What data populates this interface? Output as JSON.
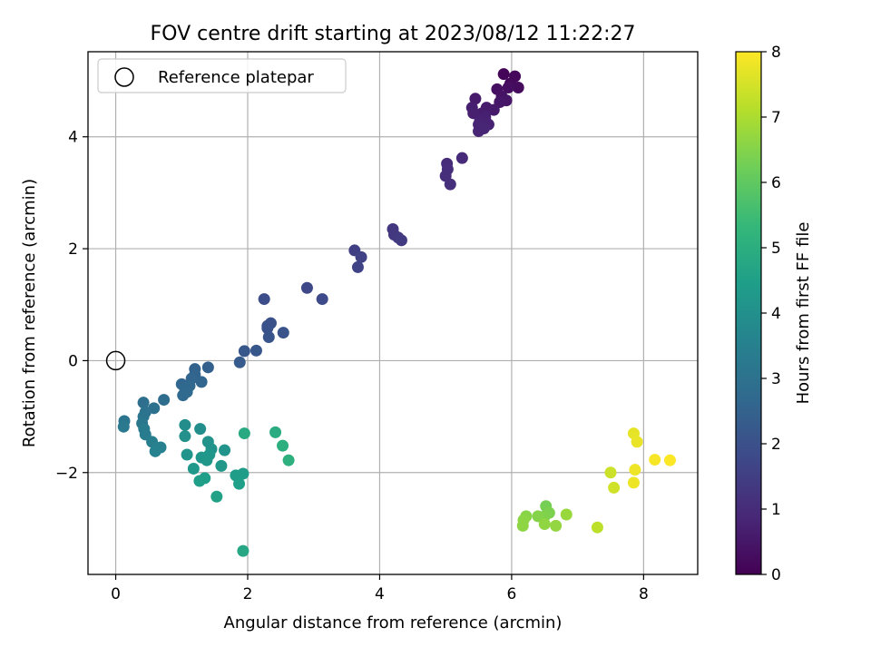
{
  "chart_data": {
    "type": "scatter",
    "title": "FOV centre drift starting at 2023/08/12 11:22:27",
    "xlabel": "Angular distance from reference (arcmin)",
    "ylabel": "Rotation from reference (arcmin)",
    "xlim": [
      -0.42,
      8.82
    ],
    "ylim": [
      -3.82,
      5.52
    ],
    "xticks": [
      0,
      2,
      4,
      6,
      8
    ],
    "yticks": [
      -2,
      0,
      2,
      4
    ],
    "xtick_labels": [
      "0",
      "2",
      "4",
      "6",
      "8"
    ],
    "ytick_labels": [
      "−2",
      "0",
      "2",
      "4"
    ],
    "grid": true,
    "legend": {
      "label": "Reference platepar",
      "position": "top-left",
      "marker": "open-circle"
    },
    "reference_point": {
      "x": 0,
      "y": 0
    },
    "colorbar": {
      "label": "Hours from first FF file",
      "min": 0,
      "max": 8,
      "ticks": [
        0,
        1,
        2,
        3,
        4,
        5,
        6,
        7,
        8
      ],
      "tick_labels": [
        "0",
        "1",
        "2",
        "3",
        "4",
        "5",
        "6",
        "7",
        "8"
      ],
      "colormap": "viridis",
      "colormap_stops": [
        "#440154",
        "#482878",
        "#3e4989",
        "#31688e",
        "#26828e",
        "#1f9e89",
        "#35b779",
        "#6ece58",
        "#b5de2b",
        "#fde725"
      ]
    },
    "points": [
      {
        "x": 5.88,
        "y": 5.12,
        "t": 0.1
      },
      {
        "x": 6.05,
        "y": 5.08,
        "t": 0.15
      },
      {
        "x": 5.98,
        "y": 4.95,
        "t": 0.2
      },
      {
        "x": 6.1,
        "y": 4.88,
        "t": 0.25
      },
      {
        "x": 5.95,
        "y": 4.88,
        "t": 0.3
      },
      {
        "x": 5.78,
        "y": 4.85,
        "t": 0.35
      },
      {
        "x": 5.85,
        "y": 4.72,
        "t": 0.4
      },
      {
        "x": 5.92,
        "y": 4.65,
        "t": 0.45
      },
      {
        "x": 5.82,
        "y": 4.62,
        "t": 0.5
      },
      {
        "x": 5.73,
        "y": 4.48,
        "t": 0.55
      },
      {
        "x": 5.45,
        "y": 4.68,
        "t": 0.6
      },
      {
        "x": 5.62,
        "y": 4.52,
        "t": 0.62
      },
      {
        "x": 5.55,
        "y": 4.42,
        "t": 0.65
      },
      {
        "x": 5.4,
        "y": 4.52,
        "t": 0.68
      },
      {
        "x": 5.42,
        "y": 4.42,
        "t": 0.7
      },
      {
        "x": 5.6,
        "y": 4.35,
        "t": 0.72
      },
      {
        "x": 5.52,
        "y": 4.28,
        "t": 0.75
      },
      {
        "x": 5.65,
        "y": 4.22,
        "t": 0.78
      },
      {
        "x": 5.5,
        "y": 4.22,
        "t": 0.8
      },
      {
        "x": 5.5,
        "y": 4.1,
        "t": 0.82
      },
      {
        "x": 5.58,
        "y": 4.15,
        "t": 0.85
      },
      {
        "x": 5.25,
        "y": 3.62,
        "t": 0.95
      },
      {
        "x": 5.02,
        "y": 3.52,
        "t": 1.0
      },
      {
        "x": 5.03,
        "y": 3.42,
        "t": 1.02
      },
      {
        "x": 5.0,
        "y": 3.3,
        "t": 1.05
      },
      {
        "x": 5.07,
        "y": 3.15,
        "t": 1.1
      },
      {
        "x": 4.2,
        "y": 2.35,
        "t": 1.3
      },
      {
        "x": 4.22,
        "y": 2.25,
        "t": 1.33
      },
      {
        "x": 4.28,
        "y": 2.2,
        "t": 1.36
      },
      {
        "x": 4.33,
        "y": 2.15,
        "t": 1.4
      },
      {
        "x": 3.62,
        "y": 1.97,
        "t": 1.5
      },
      {
        "x": 3.72,
        "y": 1.85,
        "t": 1.55
      },
      {
        "x": 3.67,
        "y": 1.67,
        "t": 1.6
      },
      {
        "x": 2.9,
        "y": 1.3,
        "t": 1.75
      },
      {
        "x": 3.13,
        "y": 1.1,
        "t": 1.8
      },
      {
        "x": 2.25,
        "y": 1.1,
        "t": 1.9
      },
      {
        "x": 2.35,
        "y": 0.67,
        "t": 2.0
      },
      {
        "x": 2.3,
        "y": 0.62,
        "t": 2.02
      },
      {
        "x": 2.3,
        "y": 0.58,
        "t": 2.05
      },
      {
        "x": 2.54,
        "y": 0.5,
        "t": 2.08
      },
      {
        "x": 2.32,
        "y": 0.42,
        "t": 2.1
      },
      {
        "x": 1.95,
        "y": 0.17,
        "t": 2.2
      },
      {
        "x": 2.13,
        "y": 0.18,
        "t": 2.22
      },
      {
        "x": 1.88,
        "y": -0.03,
        "t": 2.3
      },
      {
        "x": 1.4,
        "y": -0.12,
        "t": 2.45
      },
      {
        "x": 1.2,
        "y": -0.15,
        "t": 2.5
      },
      {
        "x": 1.2,
        "y": -0.25,
        "t": 2.55
      },
      {
        "x": 1.15,
        "y": -0.32,
        "t": 2.6
      },
      {
        "x": 1.3,
        "y": -0.38,
        "t": 2.62
      },
      {
        "x": 1.0,
        "y": -0.42,
        "t": 2.65
      },
      {
        "x": 1.12,
        "y": -0.45,
        "t": 2.68
      },
      {
        "x": 1.05,
        "y": -0.5,
        "t": 2.7
      },
      {
        "x": 1.08,
        "y": -0.56,
        "t": 2.72
      },
      {
        "x": 1.02,
        "y": -0.62,
        "t": 2.75
      },
      {
        "x": 0.73,
        "y": -0.7,
        "t": 2.85
      },
      {
        "x": 0.42,
        "y": -0.75,
        "t": 2.9
      },
      {
        "x": 0.58,
        "y": -0.85,
        "t": 2.95
      },
      {
        "x": 0.45,
        "y": -0.92,
        "t": 3.0
      },
      {
        "x": 0.42,
        "y": -1.0,
        "t": 3.05
      },
      {
        "x": 0.13,
        "y": -1.08,
        "t": 3.15
      },
      {
        "x": 0.4,
        "y": -1.12,
        "t": 3.2
      },
      {
        "x": 0.12,
        "y": -1.18,
        "t": 3.25
      },
      {
        "x": 0.43,
        "y": -1.22,
        "t": 3.3
      },
      {
        "x": 0.45,
        "y": -1.32,
        "t": 3.35
      },
      {
        "x": 0.55,
        "y": -1.45,
        "t": 3.45
      },
      {
        "x": 0.68,
        "y": -1.55,
        "t": 3.5
      },
      {
        "x": 0.6,
        "y": -1.62,
        "t": 3.55
      },
      {
        "x": 1.05,
        "y": -1.15,
        "t": 3.9
      },
      {
        "x": 1.28,
        "y": -1.22,
        "t": 3.95
      },
      {
        "x": 1.05,
        "y": -1.35,
        "t": 4.0
      },
      {
        "x": 1.4,
        "y": -1.45,
        "t": 4.05
      },
      {
        "x": 1.45,
        "y": -1.58,
        "t": 4.1
      },
      {
        "x": 1.65,
        "y": -1.6,
        "t": 4.12
      },
      {
        "x": 1.08,
        "y": -1.68,
        "t": 4.15
      },
      {
        "x": 1.42,
        "y": -1.68,
        "t": 4.18
      },
      {
        "x": 1.3,
        "y": -1.73,
        "t": 4.2
      },
      {
        "x": 1.38,
        "y": -1.78,
        "t": 4.22
      },
      {
        "x": 1.6,
        "y": -1.88,
        "t": 4.25
      },
      {
        "x": 1.18,
        "y": -1.93,
        "t": 4.3
      },
      {
        "x": 1.82,
        "y": -2.05,
        "t": 4.4
      },
      {
        "x": 1.93,
        "y": -2.02,
        "t": 4.42
      },
      {
        "x": 1.35,
        "y": -2.1,
        "t": 4.45
      },
      {
        "x": 1.27,
        "y": -2.15,
        "t": 4.48
      },
      {
        "x": 1.87,
        "y": -2.2,
        "t": 4.5
      },
      {
        "x": 1.53,
        "y": -2.43,
        "t": 4.55
      },
      {
        "x": 1.93,
        "y": -3.4,
        "t": 4.75
      },
      {
        "x": 1.95,
        "y": -1.3,
        "t": 4.85
      },
      {
        "x": 2.42,
        "y": -1.28,
        "t": 4.9
      },
      {
        "x": 2.53,
        "y": -1.52,
        "t": 5.0
      },
      {
        "x": 2.62,
        "y": -1.78,
        "t": 5.05
      },
      {
        "x": 6.52,
        "y": -2.6,
        "t": 6.3
      },
      {
        "x": 6.57,
        "y": -2.72,
        "t": 6.4
      },
      {
        "x": 6.5,
        "y": -2.78,
        "t": 6.45
      },
      {
        "x": 6.4,
        "y": -2.78,
        "t": 6.5
      },
      {
        "x": 6.22,
        "y": -2.78,
        "t": 6.55
      },
      {
        "x": 6.18,
        "y": -2.85,
        "t": 6.6
      },
      {
        "x": 6.17,
        "y": -2.95,
        "t": 6.62
      },
      {
        "x": 6.5,
        "y": -2.92,
        "t": 6.65
      },
      {
        "x": 6.67,
        "y": -2.95,
        "t": 6.68
      },
      {
        "x": 6.83,
        "y": -2.75,
        "t": 6.75
      },
      {
        "x": 7.3,
        "y": -2.98,
        "t": 7.2
      },
      {
        "x": 7.5,
        "y": -2.0,
        "t": 7.4
      },
      {
        "x": 7.55,
        "y": -2.27,
        "t": 7.45
      },
      {
        "x": 7.85,
        "y": -1.3,
        "t": 7.7
      },
      {
        "x": 7.9,
        "y": -1.45,
        "t": 7.75
      },
      {
        "x": 7.87,
        "y": -1.95,
        "t": 7.8
      },
      {
        "x": 7.85,
        "y": -2.18,
        "t": 7.82
      },
      {
        "x": 8.17,
        "y": -1.77,
        "t": 7.92
      },
      {
        "x": 8.4,
        "y": -1.78,
        "t": 7.97
      }
    ]
  }
}
